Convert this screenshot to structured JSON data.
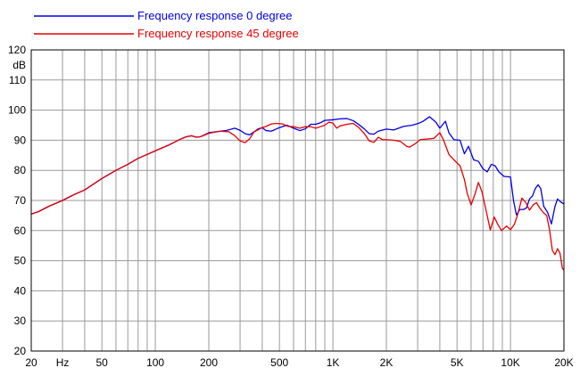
{
  "chart_data": {
    "type": "line",
    "title": "",
    "xlabel": "Hz",
    "ylabel": "dB",
    "x_scale": "log",
    "xlim": [
      20,
      20000
    ],
    "ylim": [
      20,
      120
    ],
    "y_ticks": [
      20,
      30,
      40,
      50,
      60,
      70,
      80,
      90,
      100,
      110,
      120
    ],
    "x_ticks": [
      {
        "value": 20,
        "label": "20"
      },
      {
        "value": 30,
        "label": "Hz"
      },
      {
        "value": 50,
        "label": "50"
      },
      {
        "value": 100,
        "label": "100"
      },
      {
        "value": 200,
        "label": "200"
      },
      {
        "value": 500,
        "label": "500"
      },
      {
        "value": 1000,
        "label": "1K"
      },
      {
        "value": 2000,
        "label": "2K"
      },
      {
        "value": 5000,
        "label": "5K"
      },
      {
        "value": 10000,
        "label": "10K"
      },
      {
        "value": 20000,
        "label": "20K"
      }
    ],
    "grid": true,
    "legend_position": "top-left",
    "series": [
      {
        "name": "Frequency response 0 degree",
        "color": "#0000e6",
        "points": [
          [
            20,
            65.5
          ],
          [
            22,
            66.3
          ],
          [
            25,
            68
          ],
          [
            30,
            70
          ],
          [
            35,
            72
          ],
          [
            40,
            73.5
          ],
          [
            45,
            75.5
          ],
          [
            50,
            77.3
          ],
          [
            60,
            80
          ],
          [
            70,
            82
          ],
          [
            80,
            84
          ],
          [
            90,
            85.3
          ],
          [
            100,
            86.5
          ],
          [
            120,
            88.5
          ],
          [
            140,
            90.5
          ],
          [
            150,
            91.2
          ],
          [
            160,
            91.5
          ],
          [
            170,
            91
          ],
          [
            180,
            91.2
          ],
          [
            200,
            92.5
          ],
          [
            250,
            93.2
          ],
          [
            280,
            94
          ],
          [
            300,
            93.3
          ],
          [
            320,
            92.2
          ],
          [
            340,
            91.8
          ],
          [
            360,
            92.8
          ],
          [
            380,
            93.8
          ],
          [
            400,
            94.2
          ],
          [
            420,
            93.2
          ],
          [
            450,
            93
          ],
          [
            500,
            94.2
          ],
          [
            550,
            95
          ],
          [
            600,
            94
          ],
          [
            650,
            93.2
          ],
          [
            700,
            93.8
          ],
          [
            750,
            95.3
          ],
          [
            800,
            95.3
          ],
          [
            850,
            95.8
          ],
          [
            900,
            96.6
          ],
          [
            1000,
            96.8
          ],
          [
            1100,
            97.1
          ],
          [
            1200,
            97.2
          ],
          [
            1300,
            96.5
          ],
          [
            1400,
            95.2
          ],
          [
            1500,
            93.8
          ],
          [
            1600,
            92.2
          ],
          [
            1700,
            92
          ],
          [
            1800,
            93
          ],
          [
            2000,
            93.7
          ],
          [
            2200,
            93.4
          ],
          [
            2500,
            94.6
          ],
          [
            2800,
            95
          ],
          [
            3000,
            95.5
          ],
          [
            3200,
            96.2
          ],
          [
            3500,
            97.8
          ],
          [
            3800,
            96
          ],
          [
            4000,
            94
          ],
          [
            4300,
            96.3
          ],
          [
            4500,
            92.5
          ],
          [
            4800,
            90.2
          ],
          [
            5200,
            90
          ],
          [
            5500,
            85.5
          ],
          [
            5800,
            88
          ],
          [
            6200,
            83.5
          ],
          [
            6600,
            83
          ],
          [
            7000,
            80.5
          ],
          [
            7400,
            79.5
          ],
          [
            7800,
            82
          ],
          [
            8200,
            81.5
          ],
          [
            8600,
            79.5
          ],
          [
            9200,
            78
          ],
          [
            10000,
            77.8
          ],
          [
            10400,
            70
          ],
          [
            10800,
            65.2
          ],
          [
            11300,
            67
          ],
          [
            11800,
            67
          ],
          [
            12300,
            67.5
          ],
          [
            12800,
            70.5
          ],
          [
            13300,
            71.5
          ],
          [
            13800,
            74
          ],
          [
            14300,
            75.2
          ],
          [
            14800,
            74
          ],
          [
            15400,
            68
          ],
          [
            16200,
            66
          ],
          [
            17000,
            62.2
          ],
          [
            17800,
            68
          ],
          [
            18400,
            70.5
          ],
          [
            19200,
            69.5
          ],
          [
            20000,
            68.8
          ]
        ]
      },
      {
        "name": "Frequency response 45 degree",
        "color": "#e60000",
        "points": [
          [
            20,
            65.5
          ],
          [
            22,
            66.3
          ],
          [
            25,
            68
          ],
          [
            30,
            70
          ],
          [
            35,
            72
          ],
          [
            40,
            73.5
          ],
          [
            45,
            75.5
          ],
          [
            50,
            77.3
          ],
          [
            60,
            80
          ],
          [
            70,
            82
          ],
          [
            80,
            84
          ],
          [
            90,
            85.3
          ],
          [
            100,
            86.5
          ],
          [
            120,
            88.5
          ],
          [
            140,
            90.5
          ],
          [
            150,
            91.2
          ],
          [
            160,
            91.5
          ],
          [
            170,
            91
          ],
          [
            180,
            91.2
          ],
          [
            200,
            92.3
          ],
          [
            230,
            93
          ],
          [
            260,
            92.8
          ],
          [
            280,
            91.5
          ],
          [
            300,
            89.8
          ],
          [
            320,
            89.2
          ],
          [
            340,
            90.5
          ],
          [
            360,
            92.8
          ],
          [
            380,
            93.5
          ],
          [
            400,
            94.2
          ],
          [
            420,
            94.6
          ],
          [
            450,
            95.4
          ],
          [
            480,
            95.6
          ],
          [
            520,
            95.4
          ],
          [
            560,
            94.6
          ],
          [
            600,
            94.5
          ],
          [
            650,
            94
          ],
          [
            700,
            94.5
          ],
          [
            750,
            94.5
          ],
          [
            800,
            94
          ],
          [
            850,
            94.5
          ],
          [
            900,
            95
          ],
          [
            950,
            96
          ],
          [
            1000,
            95.7
          ],
          [
            1050,
            94
          ],
          [
            1100,
            94.8
          ],
          [
            1200,
            95.3
          ],
          [
            1300,
            95.6
          ],
          [
            1400,
            94.2
          ],
          [
            1500,
            92.3
          ],
          [
            1600,
            89.8
          ],
          [
            1700,
            89.3
          ],
          [
            1800,
            91
          ],
          [
            1900,
            90.2
          ],
          [
            2000,
            90.2
          ],
          [
            2200,
            90
          ],
          [
            2400,
            89.6
          ],
          [
            2600,
            88
          ],
          [
            2700,
            87.7
          ],
          [
            2900,
            88.8
          ],
          [
            3100,
            90.2
          ],
          [
            3400,
            90.4
          ],
          [
            3700,
            90.6
          ],
          [
            4000,
            92.5
          ],
          [
            4200,
            90
          ],
          [
            4500,
            85.3
          ],
          [
            4800,
            83.5
          ],
          [
            5200,
            81.5
          ],
          [
            5500,
            77
          ],
          [
            5700,
            72.5
          ],
          [
            6000,
            68.5
          ],
          [
            6300,
            72
          ],
          [
            6600,
            76
          ],
          [
            6900,
            73
          ],
          [
            7300,
            66.5
          ],
          [
            7700,
            60.2
          ],
          [
            8100,
            64.5
          ],
          [
            8500,
            62
          ],
          [
            8900,
            60
          ],
          [
            9500,
            61.5
          ],
          [
            10000,
            60.3
          ],
          [
            10500,
            62
          ],
          [
            11000,
            65.5
          ],
          [
            11600,
            70.8
          ],
          [
            12200,
            69.3
          ],
          [
            12800,
            66.8
          ],
          [
            13400,
            68.5
          ],
          [
            14000,
            69.3
          ],
          [
            14600,
            67.5
          ],
          [
            15300,
            66
          ],
          [
            16000,
            65
          ],
          [
            16600,
            60.2
          ],
          [
            17200,
            53.5
          ],
          [
            17800,
            52
          ],
          [
            18400,
            54
          ],
          [
            19000,
            52.5
          ],
          [
            19600,
            47.5
          ],
          [
            20000,
            46.8
          ]
        ]
      }
    ]
  }
}
